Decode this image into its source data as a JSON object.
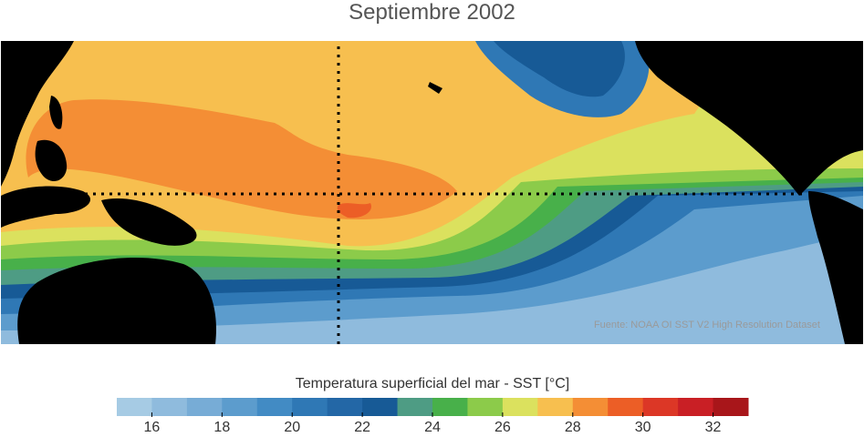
{
  "title": "Septiembre 2002",
  "source_note": "Fuente: NOAA OI SST V2 High Resolution Dataset",
  "colorbar": {
    "label": "Temperatura superficial del mar - SST  [°C]",
    "min": 15,
    "max": 33,
    "tick_values": [
      16,
      18,
      20,
      22,
      24,
      26,
      28,
      30,
      32
    ],
    "tick_labels": [
      "16",
      "18",
      "20",
      "22",
      "24",
      "26",
      "28",
      "30",
      "32"
    ],
    "colors": [
      "#a6cbe4",
      "#8fbbdd",
      "#77acd6",
      "#5c9ccd",
      "#428bc4",
      "#2f78b5",
      "#2367a6",
      "#175a96",
      "#4e9c84",
      "#48b04a",
      "#8ccb4a",
      "#dbe15e",
      "#f7bf4f",
      "#f48e35",
      "#ec5e26",
      "#dc3726",
      "#c91f25",
      "#a8161a"
    ]
  },
  "palette": {
    "land": "#000000",
    "grid_line": "#000000"
  }
}
